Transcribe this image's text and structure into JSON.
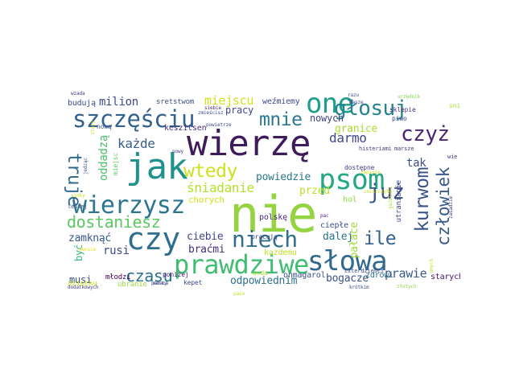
{
  "words": [
    {
      "text": "nie",
      "color": "#94d440"
    },
    {
      "text": "wierzę",
      "color": "#3e1b5b"
    },
    {
      "text": "jak",
      "color": "#20918c"
    },
    {
      "text": "psom",
      "color": "#25a884"
    },
    {
      "text": "czy",
      "color": "#2e6e8e"
    },
    {
      "text": "one",
      "color": "#1f9e89"
    },
    {
      "text": "słowa",
      "color": "#30698e"
    },
    {
      "text": "prawdziwe",
      "color": "#41bd72"
    },
    {
      "text": "wierzysz",
      "color": "#2b758e"
    },
    {
      "text": "szczęściu",
      "color": "#33628d"
    },
    {
      "text": "głosuj",
      "color": "#26838f"
    },
    {
      "text": "niech",
      "color": "#2e6f8e"
    },
    {
      "text": "czyż",
      "color": "#482575"
    },
    {
      "text": "mnie",
      "color": "#2a788e"
    },
    {
      "text": "wtedy",
      "color": "#cde11d"
    },
    {
      "text": "już",
      "color": "#3b518b"
    },
    {
      "text": "kurwom",
      "color": "#3a538b"
    },
    {
      "text": "ile",
      "color": "#355f8d"
    },
    {
      "text": "człowiek",
      "color": "#38598c"
    },
    {
      "text": "czasu",
      "color": "#2c728e"
    },
    {
      "text": "dostaniesz",
      "color": "#5cc863"
    },
    {
      "text": "truje",
      "color": "#31688e"
    },
    {
      "text": "każde",
      "color": "#365d8d"
    },
    {
      "text": "śniadanie",
      "color": "#b5de2b"
    },
    {
      "text": "milion",
      "color": "#3f4889"
    },
    {
      "text": "miejscu",
      "color": "#d2e21b"
    },
    {
      "text": "darmo",
      "color": "#3e4989"
    },
    {
      "text": "powiedzie",
      "color": "#2a788e"
    },
    {
      "text": "granice",
      "color": "#addc30"
    },
    {
      "text": "nowych",
      "color": "#414487"
    },
    {
      "text": "tak",
      "color": "#3d4d8a"
    },
    {
      "text": "oddadzą",
      "color": "#4ac16d"
    },
    {
      "text": "zamknąć",
      "color": "#38588c"
    },
    {
      "text": "ciebie",
      "color": "#404588"
    },
    {
      "text": "dalej",
      "color": "#2c738e"
    },
    {
      "text": "pałace",
      "color": "#9fda3a"
    },
    {
      "text": "przed",
      "color": "#bddf26"
    },
    {
      "text": "rusi",
      "color": "#3d4d8a"
    },
    {
      "text": "braćmi",
      "color": "#472c7a"
    },
    {
      "text": "bogacze",
      "color": "#3b528b"
    },
    {
      "text": "prawie",
      "color": "#38598c"
    },
    {
      "text": "odpowiednim",
      "color": "#2c718e"
    },
    {
      "text": "musi",
      "color": "#3b528b"
    },
    {
      "text": "być",
      "color": "#35b779"
    },
    {
      "text": "pracy",
      "color": "#404588"
    },
    {
      "text": "budują",
      "color": "#3e4a89"
    },
    {
      "text": "weźmiemy",
      "color": "#3e4989"
    },
    {
      "text": "sretstwom",
      "color": "#3b518b"
    },
    {
      "text": "keszitsen",
      "color": "#472d7b"
    },
    {
      "text": "chorych",
      "color": "#d5e21a"
    },
    {
      "text": "polskę",
      "color": "#482878"
    },
    {
      "text": "ciepłe",
      "color": "#3c4f8a"
    },
    {
      "text": "zdrowi",
      "color": "#2d708e"
    },
    {
      "text": "starych",
      "color": "#471365"
    },
    {
      "text": "hol",
      "color": "#8fd744"
    },
    {
      "text": "onmagarol",
      "color": "#3b528b"
    },
    {
      "text": "każdemu",
      "color": "#c2df23"
    },
    {
      "text": "młodzi",
      "color": "#440154"
    },
    {
      "text": "dziecku",
      "color": "#d8e219"
    },
    {
      "text": "ubranie",
      "color": "#9dd93b"
    },
    {
      "text": "kepet",
      "color": "#3e4a89"
    },
    {
      "text": "poniżej",
      "color": "#481b6d"
    },
    {
      "text": "woda",
      "color": "#a5db36"
    },
    {
      "text": "pracują",
      "color": "#404688"
    },
    {
      "text": "dostępne",
      "color": "#433e85"
    },
    {
      "text": "histeriami",
      "color": "#423f85"
    },
    {
      "text": "marsze",
      "color": "#433e85"
    },
    {
      "text": "utranianie",
      "color": "#3e4c8a"
    },
    {
      "text": "sklepie",
      "color": "#46327e"
    },
    {
      "text": "piwo",
      "color": "#3f4788"
    },
    {
      "text": "sni",
      "color": "#b2dd2d"
    },
    {
      "text": "urzędnik",
      "color": "#86d549"
    },
    {
      "text": "wie",
      "color": "#453581"
    },
    {
      "text": "nową",
      "color": "#3b528b"
    },
    {
      "text": "miejsc",
      "color": "#5ec962"
    },
    {
      "text": "lepiej",
      "color": "#39568c"
    },
    {
      "text": "jedząc",
      "color": "#3a548c"
    },
    {
      "text": "czterdzieści",
      "color": "#3e4989"
    },
    {
      "text": "krótkim",
      "color": "#3d4d8a"
    },
    {
      "text": "złotych",
      "color": "#8bd646"
    },
    {
      "text": "umych",
      "color": "#c0df25"
    },
    {
      "text": "pałaca",
      "color": "#3e4a89"
    },
    {
      "text": "dodatkowych",
      "color": "#423f85"
    },
    {
      "text": "marty",
      "color": "#3e4a89"
    },
    {
      "text": "zmieścisz",
      "color": "#3f4889"
    },
    {
      "text": "powietrze",
      "color": "#414487"
    },
    {
      "text": "zapsuje",
      "color": "#cae11f"
    },
    {
      "text": "pac",
      "color": "#482374"
    },
    {
      "text": "pasa",
      "color": "#c8e020"
    },
    {
      "text": "nowy",
      "color": "#443983"
    },
    {
      "text": "siebie",
      "color": "#46337f"
    },
    {
      "text": "razu",
      "color": "#3b518b"
    },
    {
      "text": "masze",
      "color": "#3e4a89"
    },
    {
      "text": "gazelami",
      "color": "#bade28"
    },
    {
      "text": "wzada",
      "color": "#443983"
    },
    {
      "text": "sinky",
      "color": "#cde11d"
    },
    {
      "text": "zniszczył",
      "color": "#d0e11c"
    },
    {
      "text": "stary",
      "color": "#d2e21b"
    },
    {
      "text": "zasadzie",
      "color": "#423f85"
    },
    {
      "text": "sensie",
      "color": "#dde318"
    }
  ]
}
